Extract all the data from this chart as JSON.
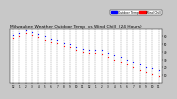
{
  "title": "Milwaukee Weather Outdoor Temp  vs Wind Chill  (24 Hours)",
  "title_fontsize": 3.2,
  "bg_color": "#c8c8c8",
  "plot_bg_color": "#ffffff",
  "temp_color": "#0000ff",
  "wind_color": "#ff0000",
  "grid_color": "#888888",
  "legend_temp_label": "Outdoor Temp",
  "legend_wind_label": "Wind Chill",
  "hours": [
    0,
    1,
    2,
    3,
    4,
    5,
    6,
    7,
    8,
    9,
    10,
    11,
    12,
    13,
    14,
    15,
    16,
    17,
    18,
    19,
    20,
    21,
    22,
    23
  ],
  "temp_data": [
    62,
    65,
    68,
    66,
    63,
    60,
    57,
    55,
    52,
    50,
    47,
    44,
    43,
    43,
    42,
    39,
    36,
    33,
    30,
    27,
    24,
    21,
    19,
    17
  ],
  "wind_data": [
    58,
    61,
    64,
    62,
    59,
    56,
    53,
    51,
    48,
    46,
    43,
    40,
    39,
    39,
    37,
    34,
    30,
    27,
    24,
    20,
    17,
    14,
    11,
    9
  ],
  "ylim": [
    0,
    70
  ],
  "yticks": [
    10,
    20,
    30,
    40,
    50,
    60
  ],
  "ytick_labels": [
    "10",
    "20",
    "30",
    "40",
    "50",
    "60"
  ],
  "xlim": [
    -0.5,
    23.5
  ],
  "xtick_labels": [
    "12",
    "1",
    "2",
    "3",
    "4",
    "5",
    "6",
    "7",
    "8",
    "9",
    "10",
    "11",
    "12",
    "1",
    "2",
    "3",
    "4",
    "5",
    "6",
    "7",
    "8",
    "9",
    "10",
    "11"
  ]
}
